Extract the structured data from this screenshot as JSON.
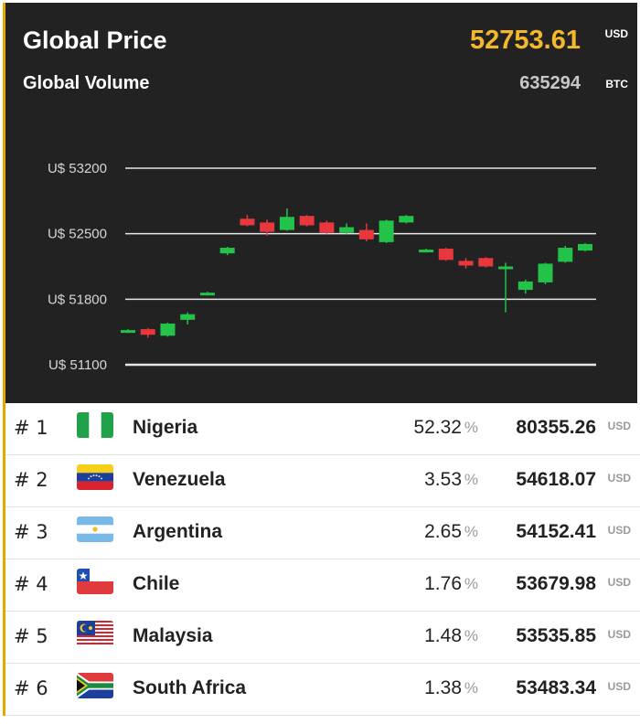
{
  "header": {
    "title": "Global Price",
    "price": "52753.61",
    "price_unit": "USD",
    "volume_label": "Global Volume",
    "volume": "635294",
    "volume_unit": "BTC"
  },
  "colors": {
    "up": "#23c248",
    "down": "#e8383d",
    "accent": "#f4b82a",
    "panel": "#222222"
  },
  "chart_data": {
    "type": "candlestick",
    "y_ticks": [
      {
        "value": 53200,
        "label": "U$ 53200"
      },
      {
        "value": 52500,
        "label": "U$ 52500"
      },
      {
        "value": 51800,
        "label": "U$ 51800"
      },
      {
        "value": 51100,
        "label": "U$ 51100"
      }
    ],
    "ylim": [
      51100,
      53200
    ],
    "grid": true,
    "candles": [
      {
        "open": 51450,
        "close": 51470,
        "high": 51480,
        "low": 51440
      },
      {
        "open": 51480,
        "close": 51420,
        "high": 51490,
        "low": 51390
      },
      {
        "open": 51410,
        "close": 51540,
        "high": 51550,
        "low": 51400
      },
      {
        "open": 51580,
        "close": 51640,
        "high": 51660,
        "low": 51530
      },
      {
        "open": 51850,
        "close": 51870,
        "high": 51880,
        "low": 51840
      },
      {
        "open": 52290,
        "close": 52350,
        "high": 52360,
        "low": 52270
      },
      {
        "open": 52660,
        "close": 52590,
        "high": 52700,
        "low": 52580
      },
      {
        "open": 52620,
        "close": 52520,
        "high": 52650,
        "low": 52480
      },
      {
        "open": 52540,
        "close": 52680,
        "high": 52770,
        "low": 52530
      },
      {
        "open": 52690,
        "close": 52590,
        "high": 52700,
        "low": 52580
      },
      {
        "open": 52620,
        "close": 52510,
        "high": 52640,
        "low": 52500
      },
      {
        "open": 52510,
        "close": 52570,
        "high": 52610,
        "low": 52500
      },
      {
        "open": 52540,
        "close": 52440,
        "high": 52610,
        "low": 52420
      },
      {
        "open": 52410,
        "close": 52640,
        "high": 52650,
        "low": 52400
      },
      {
        "open": 52620,
        "close": 52690,
        "high": 52700,
        "low": 52610
      },
      {
        "open": 52310,
        "close": 52330,
        "high": 52340,
        "low": 52300
      },
      {
        "open": 52340,
        "close": 52220,
        "high": 52350,
        "low": 52210
      },
      {
        "open": 52210,
        "close": 52160,
        "high": 52240,
        "low": 52130
      },
      {
        "open": 52240,
        "close": 52150,
        "high": 52250,
        "low": 52140
      },
      {
        "open": 52130,
        "close": 52150,
        "high": 52190,
        "low": 51660
      },
      {
        "open": 51900,
        "close": 51990,
        "high": 52010,
        "low": 51860
      },
      {
        "open": 51980,
        "close": 52180,
        "high": 52190,
        "low": 51960
      },
      {
        "open": 52200,
        "close": 52350,
        "high": 52370,
        "low": 52190
      },
      {
        "open": 52320,
        "close": 52390,
        "high": 52400,
        "low": 52310
      }
    ]
  },
  "rows": [
    {
      "rank": "# 1",
      "country": "Nigeria",
      "flag": "nigeria",
      "percent": "52.32",
      "pct_sign": "%",
      "price": "80355.26",
      "unit": "USD"
    },
    {
      "rank": "# 2",
      "country": "Venezuela",
      "flag": "venezuela",
      "percent": "3.53",
      "pct_sign": "%",
      "price": "54618.07",
      "unit": "USD"
    },
    {
      "rank": "# 3",
      "country": "Argentina",
      "flag": "argentina",
      "percent": "2.65",
      "pct_sign": "%",
      "price": "54152.41",
      "unit": "USD"
    },
    {
      "rank": "# 4",
      "country": "Chile",
      "flag": "chile",
      "percent": "1.76",
      "pct_sign": "%",
      "price": "53679.98",
      "unit": "USD"
    },
    {
      "rank": "# 5",
      "country": "Malaysia",
      "flag": "malaysia",
      "percent": "1.48",
      "pct_sign": "%",
      "price": "53535.85",
      "unit": "USD"
    },
    {
      "rank": "# 6",
      "country": "South Africa",
      "flag": "south-africa",
      "percent": "1.38",
      "pct_sign": "%",
      "price": "53483.34",
      "unit": "USD"
    }
  ]
}
